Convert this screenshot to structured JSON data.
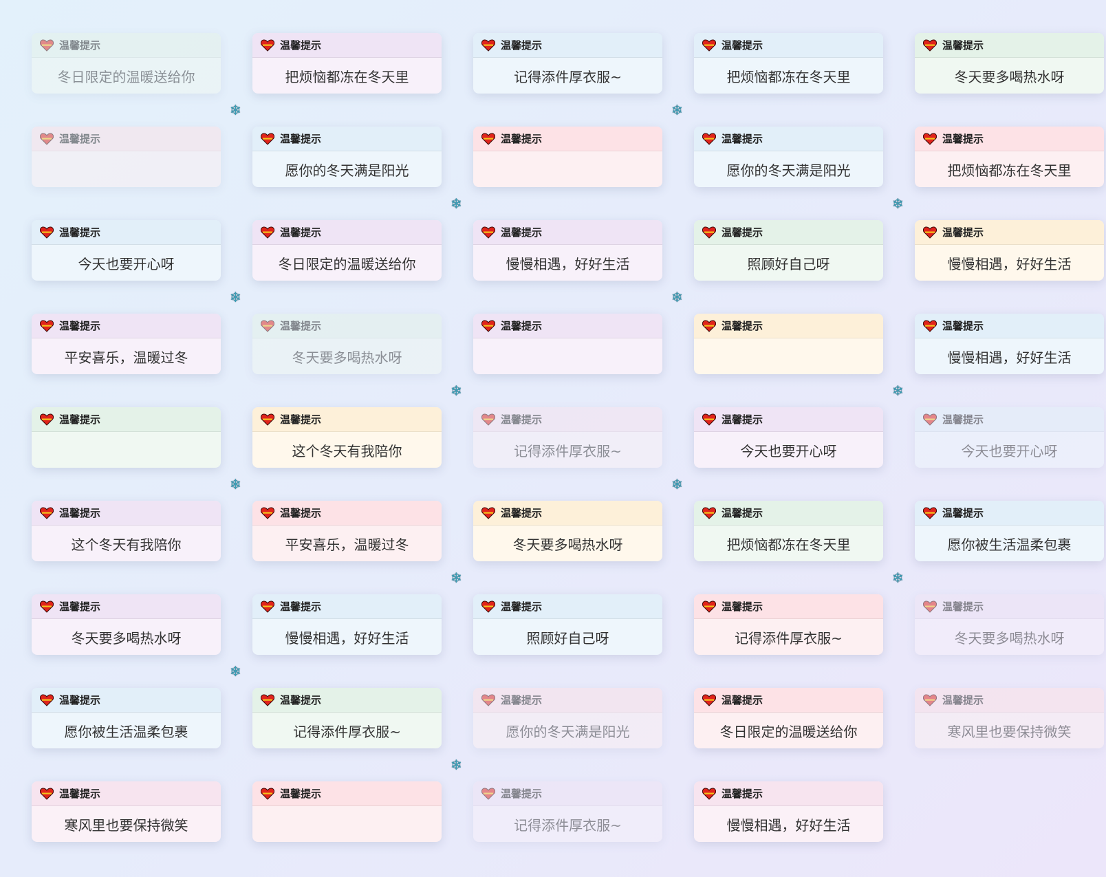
{
  "title": "温馨提示",
  "themes": {
    "pink": {
      "header": "#f7e4ef",
      "body": "#fbf1f7"
    },
    "blue": {
      "header": "#e2eff9",
      "body": "#eef6fc"
    },
    "green": {
      "header": "#e4f2e8",
      "body": "#f0f8f2"
    },
    "yellow": {
      "header": "#fdf0d9",
      "body": "#fff8ec"
    },
    "red": {
      "header": "#fde2e6",
      "body": "#fdf0f2"
    },
    "purple": {
      "header": "#efe4f5",
      "body": "#f8f1fa"
    }
  },
  "icons": {
    "card": "heart-icon",
    "decoration": "snowflake-icon"
  },
  "cards": [
    {
      "theme": "green",
      "message": "冬日限定的温暖送给你",
      "faded": true
    },
    {
      "theme": "purple",
      "message": "把烦恼都冻在冬天里"
    },
    {
      "theme": "blue",
      "message": "记得添件厚衣服~"
    },
    {
      "theme": "blue",
      "message": "把烦恼都冻在冬天里"
    },
    {
      "theme": "green",
      "message": "冬天要多喝热水呀"
    },
    {
      "theme": "red",
      "message": "",
      "faded": true
    },
    {
      "theme": "blue",
      "message": "愿你的冬天满是阳光"
    },
    {
      "theme": "red",
      "message": ""
    },
    {
      "theme": "blue",
      "message": "愿你的冬天满是阳光"
    },
    {
      "theme": "red",
      "message": "把烦恼都冻在冬天里"
    },
    {
      "theme": "blue",
      "message": "今天也要开心呀"
    },
    {
      "theme": "purple",
      "message": "冬日限定的温暖送给你"
    },
    {
      "theme": "purple",
      "message": "慢慢相遇，好好生活"
    },
    {
      "theme": "green",
      "message": "照顾好自己呀"
    },
    {
      "theme": "yellow",
      "message": "慢慢相遇，好好生活"
    },
    {
      "theme": "purple",
      "message": "平安喜乐，温暖过冬"
    },
    {
      "theme": "green",
      "message": "冬天要多喝热水呀",
      "faded": true
    },
    {
      "theme": "purple",
      "message": ""
    },
    {
      "theme": "yellow",
      "message": ""
    },
    {
      "theme": "blue",
      "message": "慢慢相遇，好好生活"
    },
    {
      "theme": "green",
      "message": ""
    },
    {
      "theme": "yellow",
      "message": "这个冬天有我陪你"
    },
    {
      "theme": "pink",
      "message": "记得添件厚衣服~",
      "faded": true
    },
    {
      "theme": "purple",
      "message": "今天也要开心呀"
    },
    {
      "theme": "blue",
      "message": "今天也要开心呀",
      "faded": true
    },
    {
      "theme": "purple",
      "message": "这个冬天有我陪你"
    },
    {
      "theme": "red",
      "message": "平安喜乐，温暖过冬"
    },
    {
      "theme": "yellow",
      "message": "冬天要多喝热水呀"
    },
    {
      "theme": "green",
      "message": "把烦恼都冻在冬天里"
    },
    {
      "theme": "blue",
      "message": "愿你被生活温柔包裹"
    },
    {
      "theme": "purple",
      "message": "冬天要多喝热水呀"
    },
    {
      "theme": "blue",
      "message": "慢慢相遇，好好生活"
    },
    {
      "theme": "blue",
      "message": "照顾好自己呀"
    },
    {
      "theme": "red",
      "message": "记得添件厚衣服~"
    },
    {
      "theme": "purple",
      "message": "冬天要多喝热水呀",
      "faded": true
    },
    {
      "theme": "blue",
      "message": "愿你被生活温柔包裹"
    },
    {
      "theme": "green",
      "message": "记得添件厚衣服~"
    },
    {
      "theme": "red",
      "message": "愿你的冬天满是阳光",
      "faded": true
    },
    {
      "theme": "red",
      "message": "冬日限定的温暖送给你"
    },
    {
      "theme": "red",
      "message": "寒风里也要保持微笑",
      "faded": true
    },
    {
      "theme": "pink",
      "message": "寒风里也要保持微笑"
    },
    {
      "theme": "red",
      "message": ""
    },
    {
      "theme": "purple",
      "message": "记得添件厚衣服~",
      "faded": true
    },
    {
      "theme": "pink",
      "message": "慢慢相遇，好好生活"
    }
  ]
}
